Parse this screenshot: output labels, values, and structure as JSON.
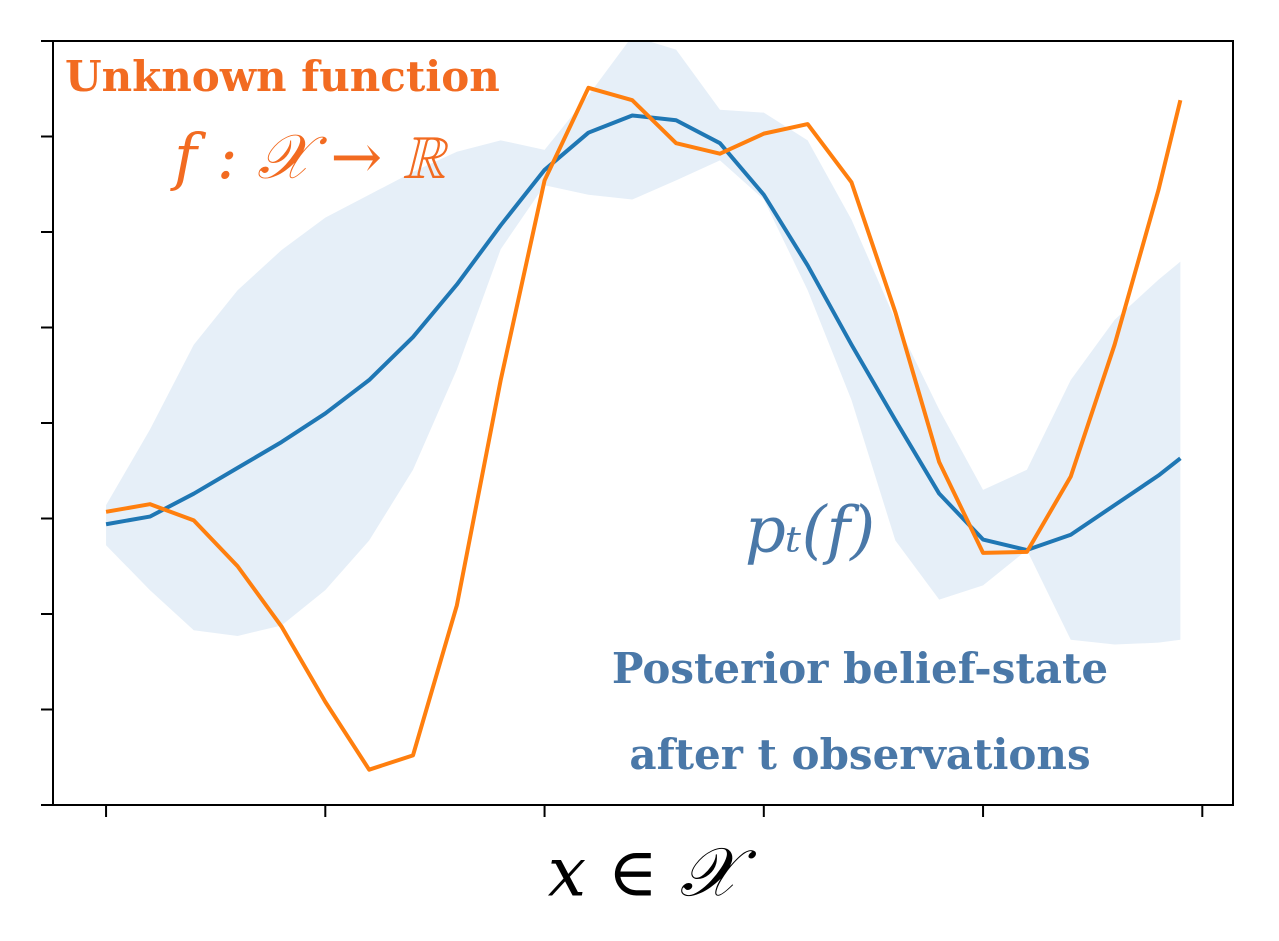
{
  "chart_data": {
    "type": "line",
    "xlabel": "x ∈ 𝒳",
    "annotations": [
      {
        "text": "Unknown function",
        "color": "#f26b21"
      },
      {
        "text": "f : 𝒳 → ℝ",
        "color": "#f26b21"
      },
      {
        "text": "pₜ(f)",
        "color": "#4a78a8"
      },
      {
        "text": "Posterior belief-state",
        "color": "#4a78a8"
      },
      {
        "text": "after t observations",
        "color": "#4a78a8"
      }
    ],
    "x": [
      0,
      0.2,
      0.4,
      0.6,
      0.8,
      1.0,
      1.2,
      1.4,
      1.6,
      1.8,
      2.0,
      2.2,
      2.4,
      2.6,
      2.8,
      3.0,
      3.2,
      3.4,
      3.6,
      3.8,
      4.0,
      4.2,
      4.4,
      4.6,
      4.8,
      4.9
    ],
    "band": {
      "color": "#e6eff8",
      "upper": [
        3.14,
        3.93,
        4.82,
        5.39,
        5.81,
        6.15,
        6.39,
        6.63,
        6.84,
        6.96,
        6.86,
        7.43,
        8.05,
        7.91,
        7.28,
        7.25,
        6.96,
        6.13,
        5.08,
        4.14,
        3.3,
        3.51,
        4.45,
        5.08,
        5.5,
        5.69
      ],
      "lower": [
        2.72,
        2.25,
        1.83,
        1.77,
        1.88,
        2.25,
        2.77,
        3.51,
        4.56,
        5.82,
        6.49,
        6.39,
        6.34,
        6.54,
        6.75,
        6.34,
        5.39,
        4.24,
        2.77,
        2.15,
        2.3,
        2.67,
        1.73,
        1.68,
        1.7,
        1.73
      ]
    },
    "series": [
      {
        "color": "#1f77b4",
        "values": [
          2.94,
          3.02,
          3.26,
          3.53,
          3.8,
          4.1,
          4.45,
          4.9,
          5.45,
          6.07,
          6.65,
          7.04,
          7.22,
          7.17,
          6.93,
          6.39,
          5.65,
          4.82,
          4.03,
          3.26,
          2.78,
          2.67,
          2.83,
          3.14,
          3.45,
          3.63
        ]
      },
      {
        "color": "#ff7f0e",
        "values": [
          3.07,
          3.15,
          2.98,
          2.5,
          1.87,
          1.08,
          0.37,
          0.52,
          2.09,
          4.45,
          6.54,
          7.51,
          7.38,
          6.93,
          6.82,
          7.03,
          7.13,
          6.52,
          5.16,
          3.59,
          2.64,
          2.65,
          3.44,
          4.82,
          6.44,
          7.38
        ]
      }
    ],
    "xlim": [
      -0.242,
      5.14
    ],
    "ylim": [
      0,
      8
    ],
    "xticks": [
      0,
      1,
      2,
      3,
      4,
      5
    ],
    "yticks": [
      0,
      1,
      2,
      3,
      4,
      5,
      6,
      7,
      8
    ]
  }
}
